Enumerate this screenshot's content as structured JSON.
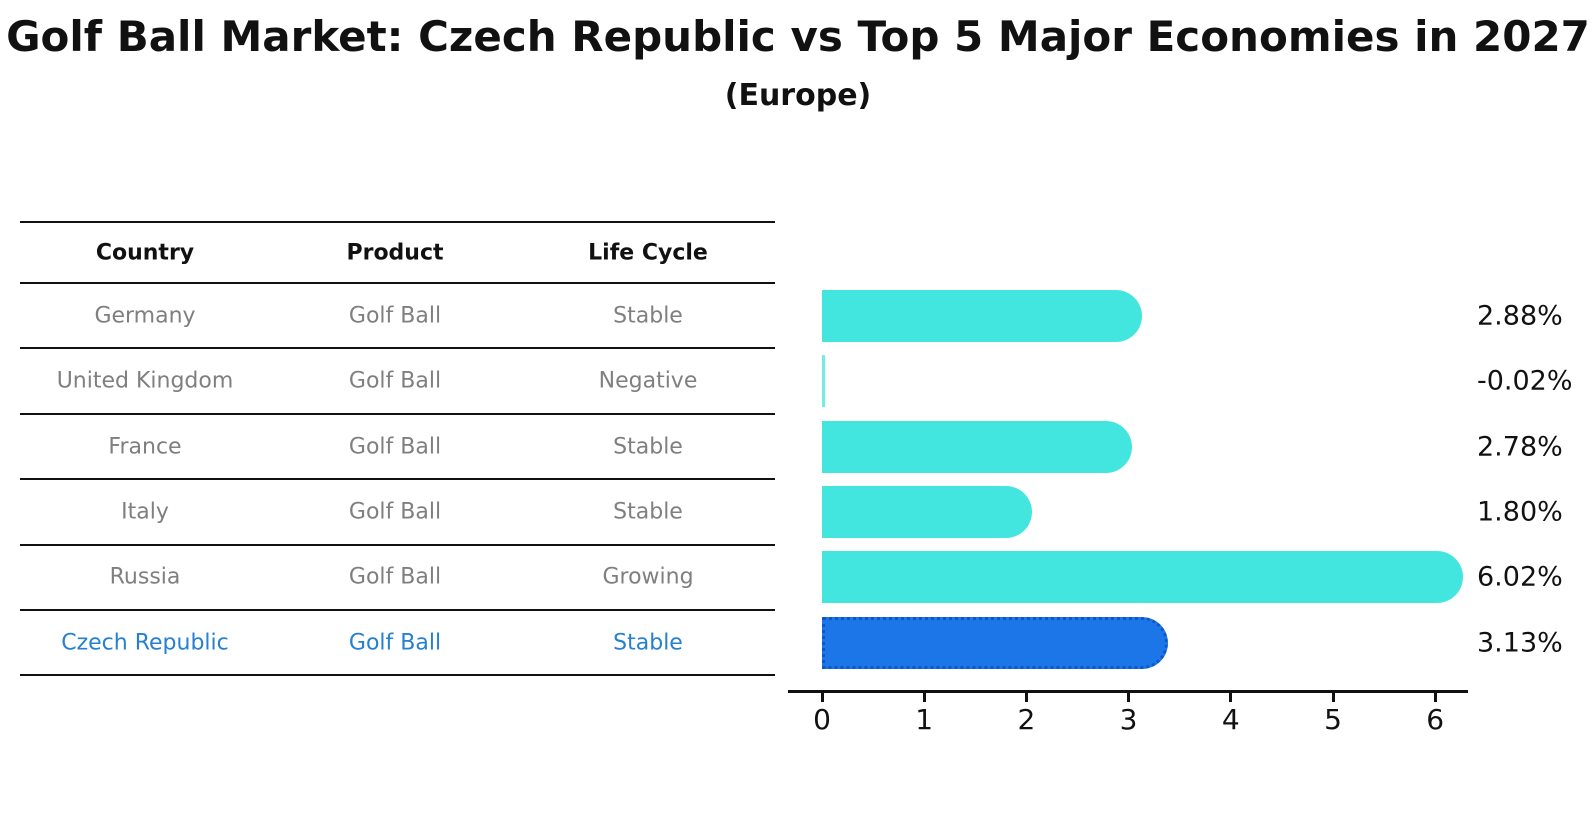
{
  "title": "Golf Ball Market: Czech Republic vs Top 5 Major Economies in 2027",
  "subtitle": "(Europe)",
  "table": {
    "headers": [
      "Country",
      "Product",
      "Life Cycle"
    ],
    "rows": [
      {
        "country": "Germany",
        "product": "Golf Ball",
        "life_cycle": "Stable",
        "highlighted": false
      },
      {
        "country": "United Kingdom",
        "product": "Golf Ball",
        "life_cycle": "Negative",
        "highlighted": false
      },
      {
        "country": "France",
        "product": "Golf Ball",
        "life_cycle": "Stable",
        "highlighted": false
      },
      {
        "country": "Italy",
        "product": "Golf Ball",
        "life_cycle": "Stable",
        "highlighted": false
      },
      {
        "country": "Russia",
        "product": "Golf Ball",
        "life_cycle": "Growing",
        "highlighted": false
      },
      {
        "country": "Czech Republic",
        "product": "Golf Ball",
        "life_cycle": "Stable",
        "highlighted": true
      }
    ]
  },
  "chart_data": {
    "type": "bar",
    "orientation": "horizontal",
    "title": "Golf Ball Market: Czech Republic vs Top 5 Major Economies in 2027",
    "subtitle": "(Europe)",
    "categories": [
      "Germany",
      "United Kingdom",
      "France",
      "Italy",
      "Russia",
      "Czech Republic"
    ],
    "values": [
      2.88,
      -0.02,
      2.78,
      1.8,
      6.02,
      3.13
    ],
    "value_labels": [
      "2.88%",
      "-0.02%",
      "2.78%",
      "1.80%",
      "6.02%",
      "3.13%"
    ],
    "x_ticks": [
      "0",
      "1",
      "2",
      "3",
      "4",
      "5",
      "6"
    ],
    "xlim": [
      0,
      6.3
    ],
    "grid": false,
    "legend": "none",
    "highlight_index": 5,
    "colors": {
      "bar": "#43e6de",
      "highlight_bar": "#1c76e8",
      "highlight_bar_border": "#0e57c8",
      "highlight_text": "#2580d2",
      "row_text": "#7f7f7f",
      "header_text": "#111111",
      "axis": "#111111"
    }
  }
}
